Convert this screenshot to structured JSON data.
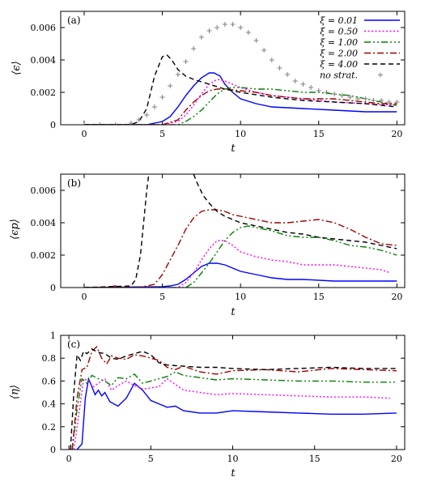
{
  "chart_data": [
    {
      "type": "line",
      "panel_label": "(a)",
      "xlabel": "t",
      "ylabel": "⟨ϵ⟩",
      "xlim": [
        -1.5,
        20.5
      ],
      "ylim": [
        0,
        0.007
      ],
      "xticks": [
        "0",
        "5",
        "10",
        "15",
        "20"
      ],
      "yticks": [
        "0",
        "0.002",
        "0.004",
        "0.006"
      ],
      "legend_position": "top-right",
      "series": [
        {
          "name": "ξ = 0.01",
          "color": "#0000ff",
          "style": "solid",
          "x": [
            0,
            4,
            5,
            5.5,
            6,
            6.5,
            7,
            7.5,
            8,
            8.3,
            8.7,
            9,
            9.5,
            10,
            11,
            12,
            14,
            16,
            18,
            20
          ],
          "y": [
            0,
            0,
            0.0002,
            0.0005,
            0.0011,
            0.0018,
            0.0024,
            0.0029,
            0.0032,
            0.0032,
            0.003,
            0.0025,
            0.002,
            0.0016,
            0.0013,
            0.0011,
            0.001,
            0.0009,
            0.0008,
            0.0008
          ]
        },
        {
          "name": "ξ = 0.50",
          "color": "#ff00ff",
          "style": "dotted",
          "x": [
            0,
            5,
            6,
            6.5,
            7,
            7.5,
            8,
            8.5,
            9,
            9.5,
            10,
            11,
            12,
            14,
            16,
            18,
            20
          ],
          "y": [
            0,
            0,
            0.0002,
            0.0006,
            0.0012,
            0.0019,
            0.0025,
            0.0028,
            0.0027,
            0.0025,
            0.0023,
            0.002,
            0.0018,
            0.0016,
            0.0014,
            0.0013,
            0.0012
          ]
        },
        {
          "name": "ξ = 1.00",
          "color": "#008000",
          "style": "dashdotdot",
          "x": [
            0,
            6,
            6.5,
            7,
            7.5,
            8,
            8.5,
            9,
            9.5,
            10,
            11,
            12,
            13,
            14,
            15,
            16,
            17,
            18,
            19,
            20
          ],
          "y": [
            0,
            0,
            0.0002,
            0.0005,
            0.0009,
            0.0014,
            0.0019,
            0.0022,
            0.0023,
            0.0023,
            0.0022,
            0.0022,
            0.0021,
            0.002,
            0.002,
            0.0019,
            0.0018,
            0.0016,
            0.0014,
            0.0012
          ]
        },
        {
          "name": "ξ = 2.00",
          "color": "#a00000",
          "style": "dashdot",
          "x": [
            0,
            5,
            6,
            6.5,
            7,
            7.5,
            8,
            8.5,
            9,
            10,
            11,
            12,
            13,
            14,
            15,
            16,
            17,
            18,
            19,
            20
          ],
          "y": [
            0,
            0,
            0.0003,
            0.0009,
            0.0014,
            0.0018,
            0.0021,
            0.0022,
            0.0022,
            0.0021,
            0.002,
            0.0018,
            0.0017,
            0.0016,
            0.0016,
            0.0016,
            0.0015,
            0.0014,
            0.0013,
            0.0013
          ]
        },
        {
          "name": "ξ = 4.00",
          "color": "#000000",
          "style": "dashed",
          "x": [
            0,
            3,
            3.5,
            4,
            4.5,
            5,
            5.3,
            5.6,
            6,
            6.5,
            7,
            8,
            9,
            10,
            12,
            14,
            16,
            18,
            20
          ],
          "y": [
            0,
            0,
            0.0002,
            0.001,
            0.003,
            0.0042,
            0.0043,
            0.004,
            0.0034,
            0.003,
            0.0028,
            0.0025,
            0.0022,
            0.002,
            0.0017,
            0.0015,
            0.0014,
            0.0013,
            0.0011
          ]
        },
        {
          "name": "no strat.",
          "color": "#808080",
          "style": "markers",
          "x": [
            0,
            1,
            2,
            3,
            3.5,
            4,
            4.5,
            5,
            5.5,
            6,
            6.5,
            7,
            7.5,
            8,
            8.5,
            9,
            9.5,
            10,
            10.5,
            11,
            11.5,
            12,
            12.5,
            13,
            13.5,
            14,
            14.5,
            15,
            15.5,
            16,
            16.5,
            17,
            17.5,
            18,
            18.5,
            19,
            19.5,
            20
          ],
          "y": [
            0,
            0,
            0,
            0.0001,
            0.0003,
            0.0006,
            0.0011,
            0.0017,
            0.0024,
            0.0031,
            0.0039,
            0.0047,
            0.0054,
            0.0058,
            0.006,
            0.0062,
            0.0062,
            0.006,
            0.0057,
            0.0052,
            0.0046,
            0.004,
            0.0035,
            0.0031,
            0.0027,
            0.0025,
            0.0023,
            0.0021,
            0.002,
            0.0019,
            0.0018,
            0.0017,
            0.0016,
            0.0016,
            0.0015,
            0.0015,
            0.0014,
            0.0014
          ]
        }
      ]
    },
    {
      "type": "line",
      "panel_label": "(b)",
      "xlabel": "t",
      "ylabel": "⟨ϵp⟩",
      "xlim": [
        -1.5,
        20.5
      ],
      "ylim": [
        0,
        0.007
      ],
      "xticks": [
        "0",
        "5",
        "10",
        "15",
        "20"
      ],
      "yticks": [
        "0",
        "0.002",
        "0.004",
        "0.006"
      ],
      "series": [
        {
          "name": "ξ = 0.01",
          "color": "#0000ff",
          "style": "solid",
          "x": [
            0,
            5,
            5.5,
            6,
            6.5,
            7,
            7.5,
            8,
            8.5,
            9,
            9.5,
            10,
            11,
            12,
            13,
            14,
            16,
            18,
            20
          ],
          "y": [
            0,
            5e-05,
            0.0001,
            0.0002,
            0.0005,
            0.0009,
            0.0013,
            0.0015,
            0.0015,
            0.0014,
            0.0012,
            0.001,
            0.0008,
            0.0006,
            0.0005,
            0.0005,
            0.0004,
            0.0004,
            0.0004
          ]
        },
        {
          "name": "ξ = 0.50",
          "color": "#ff00ff",
          "style": "dotted",
          "x": [
            0,
            6,
            6.5,
            7,
            7.5,
            8,
            8.5,
            9,
            9.5,
            10,
            11,
            12,
            13,
            14,
            15,
            16,
            17,
            18,
            19,
            19.6
          ],
          "y": [
            0,
            0,
            0.0003,
            0.0009,
            0.0017,
            0.0024,
            0.0029,
            0.0029,
            0.0026,
            0.0022,
            0.0019,
            0.0017,
            0.0016,
            0.0014,
            0.0014,
            0.0014,
            0.0013,
            0.0012,
            0.0011,
            0.0009
          ]
        },
        {
          "name": "ξ = 1.00",
          "color": "#008000",
          "style": "dashdotdot",
          "x": [
            0,
            6.5,
            7,
            7.5,
            8,
            8.5,
            9,
            9.5,
            10,
            10.5,
            11,
            12,
            13,
            14,
            15,
            16,
            17,
            18,
            19,
            20
          ],
          "y": [
            0,
            0,
            0.0003,
            0.0009,
            0.0015,
            0.0022,
            0.0029,
            0.0034,
            0.0037,
            0.0038,
            0.0037,
            0.0035,
            0.0032,
            0.0031,
            0.0031,
            0.0029,
            0.0026,
            0.0025,
            0.0023,
            0.002
          ]
        },
        {
          "name": "ξ = 2.00",
          "color": "#a00000",
          "style": "dashdot",
          "x": [
            0,
            1.5,
            2,
            2.5,
            3.5,
            4.5,
            5,
            5.5,
            6,
            6.5,
            7,
            7.5,
            8,
            8.5,
            9,
            9.5,
            10,
            11,
            12,
            13,
            14,
            15,
            16,
            17,
            18,
            19,
            20
          ],
          "y": [
            0,
            2e-05,
            0.0001,
            2e-05,
            0,
            0.0002,
            0.0008,
            0.0017,
            0.0026,
            0.0036,
            0.0043,
            0.0047,
            0.0048,
            0.0048,
            0.0047,
            0.0045,
            0.0044,
            0.0042,
            0.004,
            0.004,
            0.0041,
            0.0042,
            0.004,
            0.0036,
            0.0031,
            0.0027,
            0.0026
          ]
        },
        {
          "name": "ξ = 4.00",
          "color": "#000000",
          "style": "dashed",
          "x": [
            0,
            3,
            3.3,
            3.6,
            3.8,
            4.0,
            4.2,
            6.8,
            7.2,
            7.6,
            8,
            8.5,
            9,
            10,
            11,
            12,
            13,
            14,
            15,
            16,
            17,
            18,
            19,
            20
          ],
          "y": [
            0,
            0.0001,
            0.0005,
            0.002,
            0.004,
            0.006,
            0.0075,
            0.0075,
            0.0065,
            0.0057,
            0.0052,
            0.0047,
            0.0044,
            0.004,
            0.0038,
            0.0036,
            0.0034,
            0.0033,
            0.0031,
            0.003,
            0.0029,
            0.0028,
            0.0026,
            0.0024
          ]
        }
      ]
    },
    {
      "type": "line",
      "panel_label": "(c)",
      "xlabel": "t",
      "ylabel": "⟨η⟩",
      "xlim": [
        -0.5,
        20.5
      ],
      "ylim": [
        0,
        1
      ],
      "xticks": [
        "0",
        "5",
        "10",
        "15",
        "20"
      ],
      "yticks": [
        "0",
        "0.2",
        "0.4",
        "0.6",
        "0.8",
        "1"
      ],
      "series": [
        {
          "name": "ξ = 0.01",
          "color": "#0000ff",
          "style": "solid",
          "x": [
            0.5,
            0.8,
            1.0,
            1.2,
            1.4,
            1.6,
            1.8,
            2.0,
            2.2,
            2.5,
            3.0,
            3.5,
            4.0,
            4.5,
            5.0,
            5.5,
            6.0,
            6.5,
            7.0,
            8,
            9,
            10,
            12,
            14,
            16,
            18,
            20
          ],
          "y": [
            0,
            0.05,
            0.45,
            0.62,
            0.55,
            0.48,
            0.52,
            0.47,
            0.5,
            0.42,
            0.38,
            0.45,
            0.58,
            0.52,
            0.43,
            0.4,
            0.37,
            0.38,
            0.34,
            0.32,
            0.32,
            0.34,
            0.33,
            0.32,
            0.31,
            0.31,
            0.32
          ]
        },
        {
          "name": "ξ = 0.50",
          "color": "#ff00ff",
          "style": "dotted",
          "x": [
            0.3,
            0.6,
            0.9,
            1.2,
            1.5,
            1.8,
            2.2,
            2.6,
            3.0,
            3.5,
            4.0,
            4.5,
            5.0,
            5.5,
            6.0,
            6.5,
            7.0,
            8,
            9,
            10,
            12,
            14,
            16,
            18,
            19.6
          ],
          "y": [
            0,
            0.3,
            0.62,
            0.6,
            0.55,
            0.58,
            0.62,
            0.52,
            0.56,
            0.6,
            0.56,
            0.53,
            0.54,
            0.55,
            0.62,
            0.57,
            0.52,
            0.5,
            0.48,
            0.49,
            0.48,
            0.47,
            0.46,
            0.46,
            0.45
          ]
        },
        {
          "name": "ξ = 1.00",
          "color": "#008000",
          "style": "dashdotdot",
          "x": [
            0.2,
            0.5,
            0.8,
            1.1,
            1.4,
            1.8,
            2.2,
            2.6,
            3.0,
            3.5,
            4.0,
            4.5,
            5.0,
            5.5,
            6.0,
            6.5,
            7.0,
            8,
            9,
            10,
            12,
            14,
            16,
            18,
            20
          ],
          "y": [
            0,
            0.35,
            0.62,
            0.58,
            0.65,
            0.62,
            0.6,
            0.56,
            0.63,
            0.62,
            0.66,
            0.58,
            0.6,
            0.62,
            0.64,
            0.68,
            0.65,
            0.63,
            0.61,
            0.62,
            0.61,
            0.6,
            0.6,
            0.59,
            0.59
          ]
        },
        {
          "name": "ξ = 2.00",
          "color": "#a00000",
          "style": "dashdot",
          "x": [
            0.2,
            0.5,
            0.8,
            1.1,
            1.4,
            1.7,
            2.0,
            2.3,
            2.6,
            3.0,
            3.5,
            4.0,
            4.5,
            5.0,
            5.5,
            6.0,
            6.5,
            7.0,
            8,
            9,
            10,
            12,
            14,
            16,
            18,
            20
          ],
          "y": [
            0,
            0.45,
            0.7,
            0.72,
            0.86,
            0.9,
            0.8,
            0.75,
            0.82,
            0.8,
            0.79,
            0.83,
            0.82,
            0.8,
            0.78,
            0.72,
            0.7,
            0.73,
            0.68,
            0.66,
            0.69,
            0.7,
            0.68,
            0.71,
            0.7,
            0.69
          ]
        },
        {
          "name": "ξ = 4.00",
          "color": "#000000",
          "style": "dashed",
          "x": [
            0.1,
            0.3,
            0.5,
            0.7,
            0.9,
            1.1,
            1.4,
            1.8,
            2.2,
            2.6,
            3.0,
            3.5,
            4.0,
            4.5,
            5.0,
            5.5,
            6.0,
            7,
            8,
            9,
            10,
            12,
            14,
            16,
            18,
            20
          ],
          "y": [
            0,
            0.5,
            0.83,
            0.78,
            0.86,
            0.84,
            0.88,
            0.85,
            0.84,
            0.8,
            0.79,
            0.82,
            0.84,
            0.86,
            0.83,
            0.76,
            0.74,
            0.73,
            0.72,
            0.72,
            0.71,
            0.7,
            0.71,
            0.72,
            0.71,
            0.71
          ]
        }
      ]
    }
  ]
}
